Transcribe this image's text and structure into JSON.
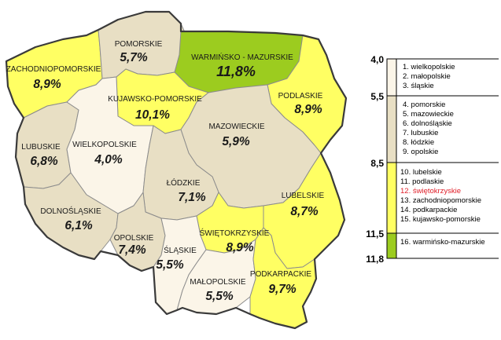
{
  "colors": {
    "class1": "#fbf5e8",
    "class2": "#e8dfc4",
    "class3": "#ffff63",
    "class4": "#9ccc1f",
    "highlight": "#e0202a",
    "border": "#3a3a3a"
  },
  "regions": {
    "pomorskie": {
      "name": "POMORSKIE",
      "value": "5,7%"
    },
    "warminsko": {
      "name": "WARMIŃSKO - MAZURSKIE",
      "value": "11,8%"
    },
    "zachodnio": {
      "name": "ZACHODNIOPOMORSKIE",
      "value": "8,9%"
    },
    "podlaskie": {
      "name": "PODLASKIE",
      "value": "8,9%"
    },
    "kujawsko": {
      "name": "KUJAWSKO-POMORSKIE",
      "value": "10,1%"
    },
    "mazowieckie": {
      "name": "MAZOWIECKIE",
      "value": "5,9%"
    },
    "lubuskie": {
      "name": "LUBUSKIE",
      "value": "6,8%"
    },
    "wielkopolskie": {
      "name": "WIELKOPOLSKIE",
      "value": "4,0%"
    },
    "lodzkie": {
      "name": "ŁÓDZKIE",
      "value": "7,1%"
    },
    "lubelskie": {
      "name": "LUBELSKIE",
      "value": "8,7%"
    },
    "dolnoslaskie": {
      "name": "DOLNOŚLĄSKIE",
      "value": "6,1%"
    },
    "opolskie": {
      "name": "OPOLSKIE",
      "value": "7,4%"
    },
    "swietokrzyskie": {
      "name": "ŚWIĘTOKRZYSKIE",
      "value": "8,9%"
    },
    "slaskie": {
      "name": "ŚLĄSKIE",
      "value": "5,5%"
    },
    "malopolskie": {
      "name": "MAŁOPOLSKIE",
      "value": "5,5%"
    },
    "podkarpackie": {
      "name": "PODKARPACKIE",
      "value": "9,7%"
    }
  },
  "legend": {
    "ticks": [
      "4,0",
      "5,5",
      "8,5",
      "11,5",
      "11,8"
    ],
    "class1_items": [
      "1. wielkopolskie",
      "2. małopolskie",
      "3. śląskie"
    ],
    "class2_items": [
      "4. pomorskie",
      "5. mazowieckie",
      "6. dolnośląskie",
      "7. lubuskie",
      "8. łódzkie",
      "9. opolskie"
    ],
    "class3_items": [
      "10. lubelskie",
      "11. podlaskie",
      "12. świętokrzyskie",
      "13. zachodniopomorskie",
      "14. podkarpackie",
      "15. kujawsko-pomorskie"
    ],
    "class4_items": [
      "16. warmińsko-mazurskie"
    ]
  }
}
